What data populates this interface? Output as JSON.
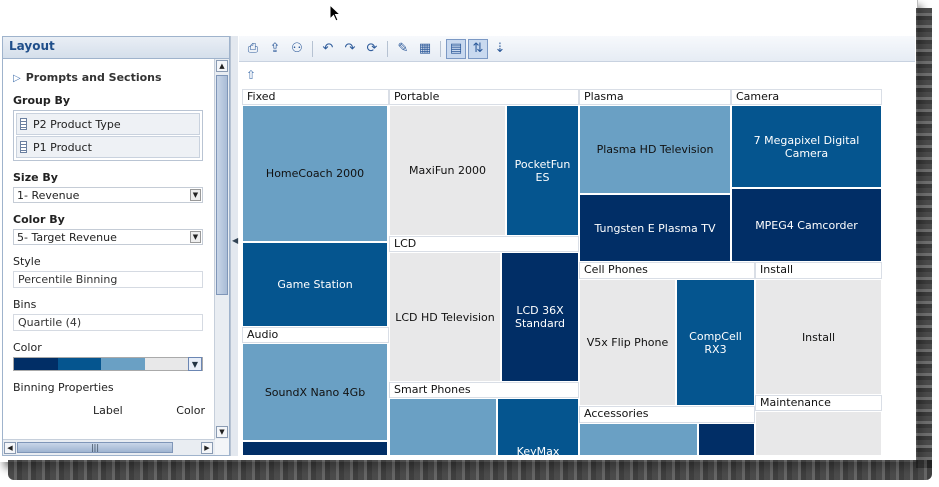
{
  "colors": {
    "q1": "#e8e8e9",
    "q2": "#6aa0c4",
    "q3": "#05558f",
    "q4": "#012e66"
  },
  "layout_panel": {
    "title": "Layout",
    "prompts_sections": "Prompts and Sections",
    "group_by_label": "Group By",
    "group_by_items": [
      "P2 Product Type",
      "P1 Product"
    ],
    "size_by_label": "Size By",
    "size_by_value": "1- Revenue",
    "color_by_label": "Color By",
    "color_by_value": "5- Target Revenue",
    "style_label": "Style",
    "style_value": "Percentile Binning",
    "bins_label": "Bins",
    "bins_value": "Quartile (4)",
    "color_label": "Color",
    "binning_properties_label": "Binning Properties",
    "bp_label_col": "Label",
    "bp_color_col": "Color"
  },
  "treemap": {
    "groups": [
      "Fixed",
      "Portable",
      "Plasma",
      "Camera",
      "Audio",
      "LCD",
      "Cell Phones",
      "Install",
      "Smart Phones",
      "Accessories",
      "Maintenance"
    ],
    "products": [
      "HomeCoach 2000",
      "Game Station",
      "SoundX Nano 4Gb",
      "MaxiFun 2000",
      "PocketFun ES",
      "LCD HD Television",
      "LCD 36X Standard",
      "KeyMax",
      "Plasma HD Television",
      "Tungsten E Plasma TV",
      "7 Megapixel Digital Camera",
      "MPEG4 Camcorder",
      "V5x Flip Phone",
      "CompCell RX3",
      "Install"
    ]
  }
}
